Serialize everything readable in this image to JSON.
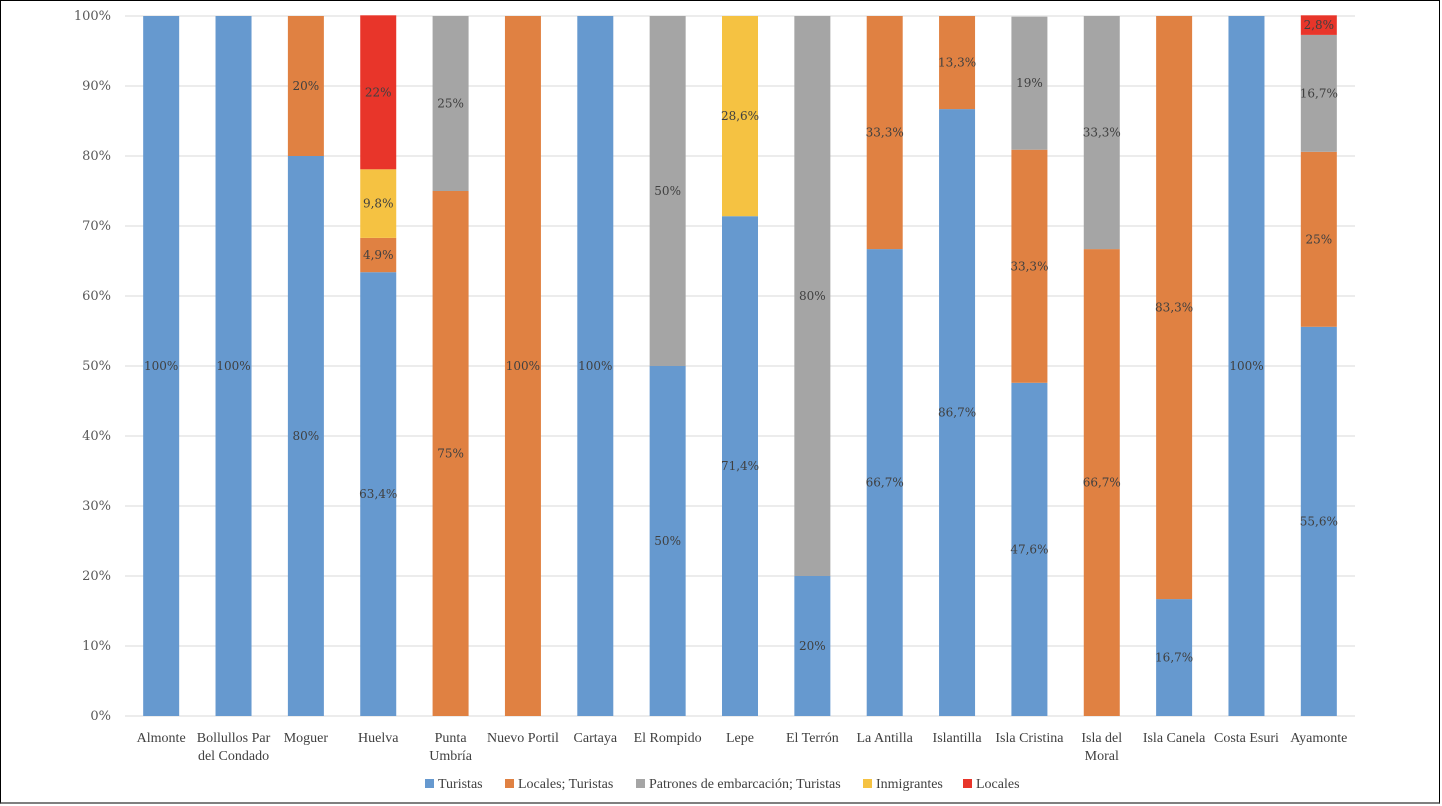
{
  "chart_data": {
    "type": "bar",
    "stacked": true,
    "percent_stacked": true,
    "title": "",
    "xlabel": "",
    "ylabel": "",
    "ylim": [
      0,
      100
    ],
    "yticks": [
      "0%",
      "10%",
      "20%",
      "30%",
      "40%",
      "50%",
      "60%",
      "70%",
      "80%",
      "90%",
      "100%"
    ],
    "grid": true,
    "legend_position": "bottom",
    "categories": [
      "Almonte",
      "Bollullos Par del Condado",
      "Moguer",
      "Huelva",
      "Punta Umbría",
      "Nuevo Portil",
      "Cartaya",
      "El Rompido",
      "Lepe",
      "El Terrón",
      "La Antilla",
      "Islantilla",
      "Isla Cristina",
      "Isla del Moral",
      "Isla Canela",
      "Costa Esuri",
      "Ayamonte"
    ],
    "category_lines": [
      [
        "Almonte"
      ],
      [
        "Bollullos Par",
        "del Condado"
      ],
      [
        "Moguer"
      ],
      [
        "Huelva"
      ],
      [
        "Punta",
        "Umbría"
      ],
      [
        "Nuevo Portil"
      ],
      [
        "Cartaya"
      ],
      [
        "El Rompido"
      ],
      [
        "Lepe"
      ],
      [
        "El Terrón"
      ],
      [
        "La Antilla"
      ],
      [
        "Islantilla"
      ],
      [
        "Isla Cristina"
      ],
      [
        "Isla del",
        "Moral"
      ],
      [
        "Isla Canela"
      ],
      [
        "Costa Esuri"
      ],
      [
        "Ayamonte"
      ]
    ],
    "series": [
      {
        "name": "Turistas",
        "color": "#6699cf",
        "values": [
          100,
          100,
          80,
          63.4,
          0,
          0,
          100,
          50,
          71.4,
          20,
          66.7,
          86.7,
          47.6,
          0,
          16.7,
          100,
          55.6
        ],
        "labels": [
          "100%",
          "100%",
          "80%",
          "63,4%",
          "",
          "",
          "100%",
          "50%",
          "71,4%",
          "20%",
          "66,7%",
          "86,7%",
          "47,6%",
          "",
          "16,7%",
          "100%",
          "55,6%"
        ]
      },
      {
        "name": "Locales; Turistas",
        "color": "#e08142",
        "values": [
          0,
          0,
          20,
          4.9,
          75,
          100,
          0,
          0,
          0,
          0,
          33.3,
          13.3,
          33.3,
          66.7,
          83.3,
          0,
          25
        ],
        "labels": [
          "",
          "",
          "20%",
          "4,9%",
          "75%",
          "100%",
          "",
          "",
          "",
          "",
          "33,3%",
          "13,3%",
          "33,3%",
          "66,7%",
          "83,3%",
          "",
          "25%"
        ]
      },
      {
        "name": "Patrones de embarcación; Turistas",
        "color": "#a5a5a5",
        "values": [
          0,
          0,
          0,
          0,
          25,
          0,
          0,
          50,
          0,
          80,
          0,
          0,
          19,
          33.3,
          0,
          0,
          16.7
        ],
        "labels": [
          "",
          "",
          "",
          "",
          "25%",
          "",
          "",
          "50%",
          "",
          "80%",
          "",
          "",
          "19%",
          "33,3%",
          "",
          "",
          "16,7%"
        ]
      },
      {
        "name": "Inmigrantes",
        "color": "#f5c242",
        "values": [
          0,
          0,
          0,
          9.8,
          0,
          0,
          0,
          0,
          28.6,
          0,
          0,
          0,
          0,
          0,
          0,
          0,
          0
        ],
        "labels": [
          "",
          "",
          "",
          "9,8%",
          "",
          "",
          "",
          "",
          "28,6%",
          "",
          "",
          "",
          "",
          "",
          "",
          "",
          ""
        ]
      },
      {
        "name": "Locales",
        "color": "#e8352a",
        "values": [
          0,
          0,
          0,
          22,
          0,
          0,
          0,
          0,
          0,
          0,
          0,
          0,
          0,
          0,
          0,
          0,
          2.8
        ],
        "labels": [
          "",
          "",
          "",
          "22%",
          "",
          "",
          "",
          "",
          "",
          "",
          "",
          "",
          "",
          "",
          "",
          "",
          "2,8%"
        ]
      }
    ]
  }
}
